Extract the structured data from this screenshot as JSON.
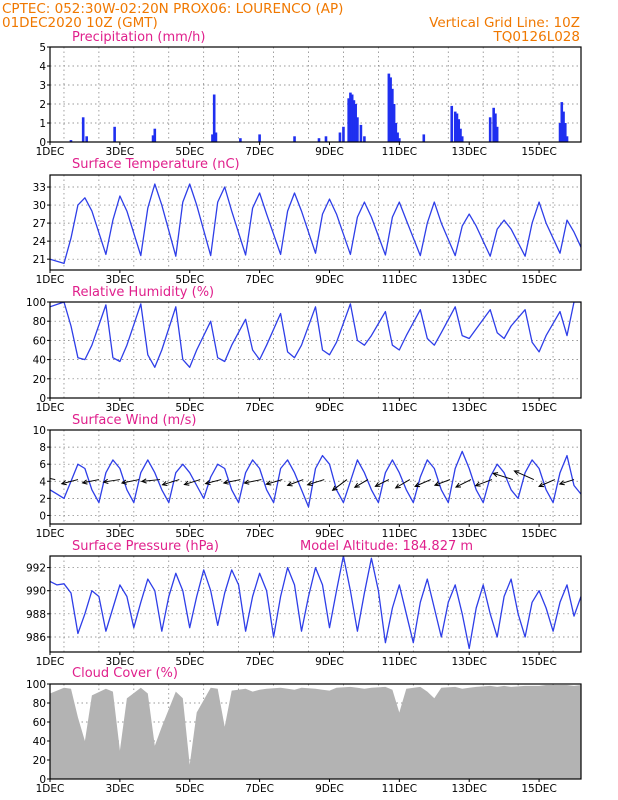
{
  "header": {
    "line1_left": "CPTEC:   052:30W-02:20N   PROX06: LOURENCO (AP)",
    "line2_left": "01DEC2020 10Z (GMT)",
    "line2_right": "Vertical Grid Line: 10Z",
    "line3_right": "TQ0126L028"
  },
  "colors": {
    "header": "#f07800",
    "title": "#e0208c",
    "series": "#2e3ee8",
    "bars": "#1f2ff0",
    "cloud": "#b3b3b3"
  },
  "x_axis": {
    "labels": [
      "1DEC",
      "3DEC",
      "5DEC",
      "7DEC",
      "9DEC",
      "11DEC",
      "13DEC",
      "15DEC"
    ],
    "label_days": [
      1,
      3,
      5,
      7,
      9,
      11,
      13,
      15
    ],
    "range_days": [
      1,
      16.2
    ],
    "vertical_grid_days": [
      1.4,
      2.4,
      3.4,
      4.4,
      5.4,
      6.4,
      7.4,
      8.4,
      9.4,
      10.4,
      11.4,
      12.4,
      13.4,
      14.4,
      15.4
    ]
  },
  "chart_data": [
    {
      "type": "bar",
      "title": "Precipitation (mm/h)",
      "ylim": [
        0,
        5
      ],
      "yticks": [
        0,
        1,
        2,
        3,
        4,
        5
      ],
      "x": [
        1.6,
        1.95,
        2.05,
        2.85,
        3.95,
        4.0,
        5.65,
        5.7,
        5.75,
        6.45,
        7.0,
        8.0,
        8.7,
        8.9,
        9.3,
        9.4,
        9.55,
        9.6,
        9.65,
        9.7,
        9.75,
        9.8,
        9.9,
        10.0,
        10.7,
        10.75,
        10.8,
        10.85,
        10.9,
        10.95,
        11.0,
        11.7,
        12.5,
        12.6,
        12.65,
        12.7,
        12.75,
        12.8,
        13.6,
        13.7,
        13.75,
        13.8,
        15.6,
        15.65,
        15.7,
        15.75,
        15.8
      ],
      "values": [
        0.1,
        1.3,
        0.3,
        0.8,
        0.35,
        0.7,
        0.4,
        2.5,
        0.5,
        0.2,
        0.4,
        0.3,
        0.2,
        0.3,
        0.5,
        0.8,
        2.3,
        2.6,
        2.5,
        2.2,
        2.0,
        1.3,
        0.9,
        0.3,
        3.6,
        3.4,
        2.8,
        2.0,
        1.0,
        0.5,
        0.2,
        0.4,
        1.9,
        1.6,
        1.5,
        1.2,
        0.7,
        0.3,
        1.3,
        1.8,
        1.5,
        0.8,
        1.0,
        2.1,
        1.6,
        1.0,
        0.3
      ]
    },
    {
      "type": "line",
      "title": "Surface Temperature (nC)",
      "ylim": [
        19.2,
        35
      ],
      "yticks": [
        21,
        24,
        27,
        30,
        33
      ],
      "series": [
        {
          "x": [
            1.0,
            1.4,
            1.6,
            1.8,
            2.0,
            2.2,
            2.6,
            2.8,
            3.0,
            3.2,
            3.6,
            3.8,
            4.0,
            4.2,
            4.6,
            4.8,
            5.0,
            5.2,
            5.6,
            5.8,
            6.0,
            6.2,
            6.6,
            6.8,
            7.0,
            7.2,
            7.6,
            7.8,
            8.0,
            8.2,
            8.6,
            8.8,
            9.0,
            9.2,
            9.6,
            9.8,
            10.0,
            10.2,
            10.6,
            10.8,
            11.0,
            11.2,
            11.6,
            11.8,
            12.0,
            12.2,
            12.6,
            12.8,
            13.0,
            13.2,
            13.6,
            13.8,
            14.0,
            14.2,
            14.6,
            14.8,
            15.0,
            15.2,
            15.6,
            15.8,
            16.0,
            16.2
          ],
          "values": [
            21.0,
            20.3,
            24.5,
            30.0,
            31.2,
            29.0,
            21.8,
            27.5,
            31.5,
            29.0,
            21.6,
            29.5,
            33.5,
            30.0,
            21.5,
            30.5,
            33.5,
            30.0,
            21.6,
            30.5,
            33.0,
            29.0,
            21.7,
            29.5,
            32.0,
            28.5,
            21.8,
            29.0,
            32.0,
            29.0,
            22.0,
            28.5,
            31.0,
            28.5,
            21.8,
            28.0,
            30.5,
            28.0,
            21.7,
            28.0,
            30.5,
            27.5,
            21.6,
            27.0,
            30.5,
            27.0,
            21.6,
            26.5,
            28.5,
            26.5,
            21.5,
            26.0,
            27.5,
            26.0,
            21.5,
            27.0,
            30.5,
            27.0,
            22.0,
            27.5,
            25.5,
            23.0
          ]
        }
      ]
    },
    {
      "type": "line",
      "title": "Relative Humidity (%)",
      "ylim": [
        0,
        100
      ],
      "yticks": [
        0,
        20,
        40,
        60,
        80,
        100
      ],
      "series": [
        {
          "x": [
            1.0,
            1.4,
            1.6,
            1.8,
            2.0,
            2.2,
            2.6,
            2.8,
            3.0,
            3.2,
            3.6,
            3.8,
            4.0,
            4.2,
            4.6,
            4.8,
            5.0,
            5.2,
            5.6,
            5.8,
            6.0,
            6.2,
            6.6,
            6.8,
            7.0,
            7.2,
            7.6,
            7.8,
            8.0,
            8.2,
            8.6,
            8.8,
            9.0,
            9.2,
            9.6,
            9.8,
            10.0,
            10.2,
            10.6,
            10.8,
            11.0,
            11.2,
            11.6,
            11.8,
            12.0,
            12.2,
            12.6,
            12.8,
            13.0,
            13.2,
            13.6,
            13.8,
            14.0,
            14.2,
            14.6,
            14.8,
            15.0,
            15.2,
            15.6,
            15.8,
            16.0,
            16.2
          ],
          "values": [
            95,
            100,
            75,
            42,
            40,
            55,
            97,
            42,
            38,
            55,
            98,
            45,
            32,
            50,
            95,
            40,
            32,
            50,
            80,
            42,
            38,
            55,
            82,
            50,
            40,
            55,
            88,
            48,
            42,
            55,
            95,
            50,
            45,
            58,
            98,
            60,
            55,
            65,
            90,
            55,
            50,
            65,
            92,
            62,
            55,
            68,
            95,
            65,
            62,
            72,
            92,
            68,
            62,
            75,
            92,
            58,
            48,
            65,
            90,
            65,
            100,
            100
          ]
        }
      ]
    },
    {
      "type": "line",
      "title": "Surface Wind (m/s)",
      "ylim": [
        -1,
        10
      ],
      "yticks": [
        0,
        2,
        4,
        6,
        8,
        10
      ],
      "series": [
        {
          "x": [
            1.0,
            1.2,
            1.4,
            1.6,
            1.8,
            2.0,
            2.2,
            2.4,
            2.6,
            2.8,
            3.0,
            3.2,
            3.4,
            3.6,
            3.8,
            4.0,
            4.2,
            4.4,
            4.6,
            4.8,
            5.0,
            5.2,
            5.4,
            5.6,
            5.8,
            6.0,
            6.2,
            6.4,
            6.6,
            6.8,
            7.0,
            7.2,
            7.4,
            7.6,
            7.8,
            8.0,
            8.2,
            8.4,
            8.6,
            8.8,
            9.0,
            9.2,
            9.4,
            9.6,
            9.8,
            10.0,
            10.2,
            10.4,
            10.6,
            10.8,
            11.0,
            11.2,
            11.4,
            11.6,
            11.8,
            12.0,
            12.2,
            12.4,
            12.6,
            12.8,
            13.0,
            13.2,
            13.4,
            13.6,
            13.8,
            14.0,
            14.2,
            14.4,
            14.6,
            14.8,
            15.0,
            15.2,
            15.4,
            15.6,
            15.8,
            16.0,
            16.2
          ],
          "values": [
            3.0,
            2.5,
            2.0,
            4.0,
            6.0,
            5.5,
            3.0,
            1.5,
            5.0,
            6.5,
            5.5,
            3.0,
            1.5,
            5.0,
            6.5,
            5.0,
            3.0,
            1.5,
            5.0,
            6.0,
            5.0,
            3.5,
            2.0,
            4.5,
            6.0,
            5.5,
            3.0,
            1.5,
            5.0,
            6.5,
            5.5,
            3.0,
            1.5,
            5.5,
            6.5,
            5.0,
            3.0,
            1.0,
            5.5,
            7.0,
            6.0,
            3.0,
            1.5,
            4.0,
            6.5,
            5.0,
            3.0,
            1.5,
            5.0,
            6.5,
            5.0,
            3.0,
            1.5,
            4.5,
            6.5,
            5.5,
            3.0,
            1.5,
            5.5,
            7.5,
            5.5,
            3.0,
            1.5,
            4.5,
            6.0,
            5.0,
            3.0,
            2.0,
            5.0,
            6.5,
            5.5,
            3.0,
            1.5,
            5.0,
            7.0,
            3.5,
            2.5
          ]
        }
      ],
      "vectors": {
        "x": [
          1.15,
          1.8,
          2.4,
          3.0,
          3.55,
          4.15,
          4.7,
          5.3,
          5.9,
          6.45,
          7.05,
          7.65,
          8.25,
          8.85,
          9.5,
          10.1,
          10.7,
          11.3,
          11.9,
          12.45,
          13.05,
          13.65,
          14.25,
          14.85,
          15.45,
          16.0
        ],
        "speed": [
          4.5,
          4.0,
          4.0,
          4.0,
          4.2,
          4.4,
          4.2,
          4.0,
          3.9,
          4.1,
          4.2,
          4.0,
          4.0,
          4.2,
          4.3,
          3.7,
          3.6,
          4.0,
          4.1,
          3.9,
          4.0,
          4.2,
          5.0,
          5.2,
          4.1,
          3.6
        ],
        "u": [
          -0.98,
          -0.97,
          -0.98,
          -0.98,
          -0.98,
          -0.99,
          -0.96,
          -0.95,
          -0.96,
          -0.97,
          -0.97,
          -0.96,
          -0.94,
          -0.95,
          -0.8,
          -0.85,
          -0.9,
          -0.85,
          -0.92,
          -0.93,
          -0.9,
          -0.93,
          -0.95,
          -0.9,
          -0.92,
          -0.95
        ],
        "v": [
          0.2,
          -0.25,
          -0.2,
          -0.15,
          -0.2,
          -0.1,
          -0.3,
          -0.3,
          -0.25,
          -0.2,
          -0.2,
          -0.28,
          -0.35,
          -0.3,
          -0.6,
          -0.5,
          -0.45,
          -0.5,
          -0.4,
          -0.35,
          -0.45,
          -0.35,
          0.3,
          0.4,
          -0.4,
          -0.3
        ]
      }
    },
    {
      "type": "line",
      "title": "Surface Pressure (hPa)",
      "annotation": "Model Altitude: 184.827 m",
      "ylim": [
        984.7,
        993
      ],
      "yticks": [
        986,
        988,
        990,
        992
      ],
      "series": [
        {
          "x": [
            1.0,
            1.2,
            1.4,
            1.6,
            1.8,
            2.0,
            2.2,
            2.4,
            2.6,
            2.8,
            3.0,
            3.2,
            3.4,
            3.6,
            3.8,
            4.0,
            4.2,
            4.4,
            4.6,
            4.8,
            5.0,
            5.2,
            5.4,
            5.6,
            5.8,
            6.0,
            6.2,
            6.4,
            6.6,
            6.8,
            7.0,
            7.2,
            7.4,
            7.6,
            7.8,
            8.0,
            8.2,
            8.4,
            8.6,
            8.8,
            9.0,
            9.2,
            9.4,
            9.6,
            9.8,
            10.0,
            10.2,
            10.4,
            10.6,
            10.8,
            11.0,
            11.2,
            11.4,
            11.6,
            11.8,
            12.0,
            12.2,
            12.4,
            12.6,
            12.8,
            13.0,
            13.2,
            13.4,
            13.6,
            13.8,
            14.0,
            14.2,
            14.4,
            14.6,
            14.8,
            15.0,
            15.2,
            15.4,
            15.6,
            15.8,
            16.0,
            16.2
          ],
          "values": [
            990.8,
            990.5,
            990.6,
            989.8,
            986.3,
            988.0,
            990.0,
            989.5,
            986.5,
            988.5,
            990.5,
            989.5,
            986.8,
            989.0,
            991.0,
            990.0,
            986.5,
            989.5,
            991.5,
            990.0,
            986.8,
            989.5,
            991.8,
            990.0,
            987.0,
            989.8,
            991.8,
            990.5,
            986.5,
            989.5,
            991.5,
            990.0,
            986.0,
            989.5,
            992.0,
            990.5,
            986.5,
            989.5,
            992.0,
            990.5,
            986.8,
            990.0,
            993.0,
            990.0,
            986.5,
            989.8,
            992.8,
            990.0,
            985.5,
            988.5,
            990.5,
            988.0,
            985.5,
            989.0,
            991.0,
            988.5,
            986.0,
            989.0,
            990.5,
            988.0,
            985.0,
            988.5,
            990.5,
            988.0,
            986.0,
            989.5,
            991.0,
            988.0,
            986.0,
            989.0,
            990.0,
            988.5,
            986.5,
            989.0,
            990.5,
            987.8,
            989.5
          ]
        }
      ]
    },
    {
      "type": "area",
      "title": "Cloud Cover (%)",
      "ylim": [
        0,
        100
      ],
      "yticks": [
        0,
        20,
        40,
        60,
        80,
        100
      ],
      "series": [
        {
          "x": [
            1.0,
            1.4,
            1.6,
            1.8,
            2.0,
            2.2,
            2.6,
            2.8,
            3.0,
            3.2,
            3.6,
            3.8,
            4.0,
            4.2,
            4.6,
            4.8,
            5.0,
            5.2,
            5.6,
            5.8,
            6.0,
            6.2,
            6.6,
            6.8,
            7.0,
            7.2,
            7.6,
            7.8,
            8.0,
            8.2,
            8.6,
            8.8,
            9.0,
            9.2,
            9.6,
            9.8,
            10.0,
            10.2,
            10.6,
            10.8,
            11.0,
            11.2,
            11.6,
            11.8,
            12.0,
            12.2,
            12.6,
            12.8,
            13.0,
            13.2,
            13.6,
            13.8,
            14.0,
            14.2,
            14.6,
            14.8,
            15.0,
            15.2,
            15.6,
            15.8,
            16.0,
            16.2
          ],
          "values": [
            90,
            96,
            95,
            65,
            40,
            88,
            95,
            92,
            30,
            85,
            96,
            90,
            35,
            55,
            92,
            85,
            15,
            70,
            96,
            95,
            55,
            93,
            95,
            92,
            94,
            95,
            96,
            95,
            94,
            96,
            95,
            94,
            93,
            96,
            97,
            96,
            95,
            96,
            97,
            94,
            70,
            95,
            97,
            92,
            85,
            96,
            97,
            95,
            96,
            97,
            98,
            97,
            98,
            97,
            98,
            98,
            98,
            99,
            99,
            99,
            98,
            99
          ]
        }
      ]
    }
  ]
}
